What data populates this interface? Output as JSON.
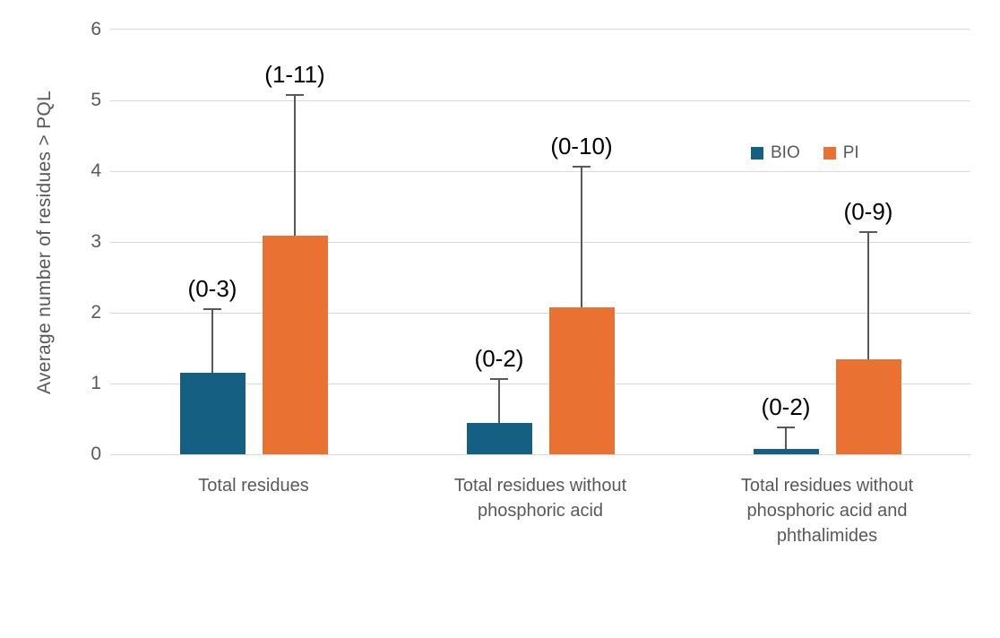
{
  "chart_data": {
    "type": "bar",
    "title": "",
    "xlabel": "",
    "ylabel": "Average number of residues > PQL",
    "ylim": [
      0,
      6
    ],
    "yticks": [
      0,
      1,
      2,
      3,
      4,
      5,
      6
    ],
    "grid": true,
    "legend_position": "inside-upper-right",
    "categories": [
      "Total residues",
      "Total residues without phosphoric acid",
      "Total residues without phosphoric acid and phthalimides"
    ],
    "series": [
      {
        "name": "BIO",
        "color": "#156082",
        "values": [
          1.15,
          0.45,
          0.08
        ],
        "error_bar_top": [
          2.05,
          1.07,
          0.39
        ],
        "range_annotations": [
          "(0-3)",
          "(0-2)",
          "(0-2)"
        ]
      },
      {
        "name": "PI",
        "color": "#E97132",
        "values": [
          3.09,
          2.08,
          1.34
        ],
        "error_bar_top": [
          5.08,
          4.07,
          3.14
        ],
        "range_annotations": [
          "(1-11)",
          "(0-10)",
          "(0-9)"
        ]
      }
    ],
    "colors": {
      "axis_text": "#595959",
      "gridline": "#d9d9d9",
      "annotation_text": "#000000",
      "error_bar": "#595959"
    }
  }
}
